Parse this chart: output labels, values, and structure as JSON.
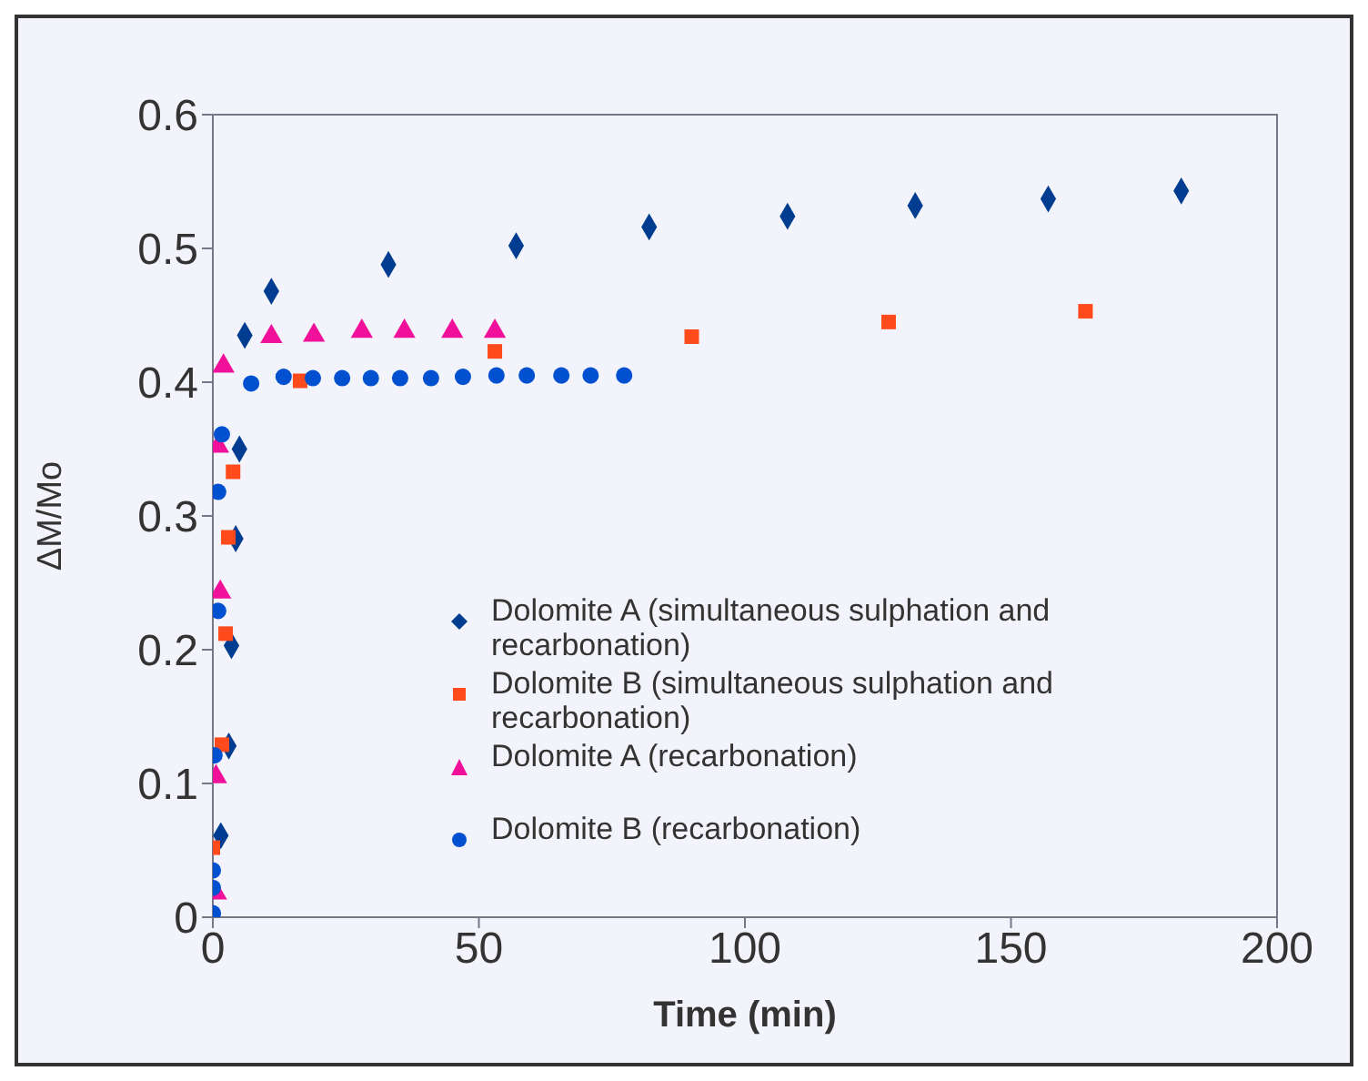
{
  "chart_data": {
    "type": "scatter",
    "xlabel": "Time (min)",
    "ylabel": "ΔM/Mo",
    "xlim": [
      0,
      200
    ],
    "xticks": [
      0,
      50,
      100,
      150,
      200
    ],
    "ylim": [
      0,
      0.6
    ],
    "yticks": [
      0,
      0.1,
      0.2,
      0.3,
      0.4,
      0.5,
      0.6
    ],
    "grid": false,
    "legend": "bottom",
    "series": [
      {
        "name": "Dolomite A (simultaneous sulphation and recarbonation)",
        "color": "#003c8f",
        "marker": "diamond",
        "x": [
          1.5,
          3,
          3.5,
          4.3,
          5,
          6,
          11,
          33,
          57,
          82,
          108,
          132,
          157,
          182
        ],
        "values": [
          0.061,
          0.128,
          0.203,
          0.283,
          0.35,
          0.435,
          0.468,
          0.488,
          0.502,
          0.516,
          0.524,
          0.532,
          0.537,
          0.543
        ]
      },
      {
        "name": "Dolomite B (simultaneous sulphation and recarbonation)",
        "color": "#ff4a1c",
        "marker": "square",
        "x": [
          0,
          1.7,
          2.4,
          2.9,
          3.8,
          16.4,
          53,
          90,
          127,
          164
        ],
        "values": [
          0.052,
          0.129,
          0.212,
          0.284,
          0.333,
          0.401,
          0.423,
          0.434,
          0.445,
          0.453
        ]
      },
      {
        "name": "Dolomite A (recarbonation)",
        "color": "#f0109a",
        "marker": "triangle",
        "x": [
          0.6,
          0.6,
          1.4,
          1,
          2,
          11,
          19,
          28,
          36,
          45,
          53
        ],
        "values": [
          0.018,
          0.105,
          0.243,
          0.352,
          0.412,
          0.434,
          0.435,
          0.438,
          0.438,
          0.438,
          0.438
        ]
      },
      {
        "name": "Dolomite B (recarbonation)",
        "color": "#0050d0",
        "marker": "circle",
        "x": [
          0,
          0,
          0,
          0.3,
          1,
          1,
          1.7,
          7.2,
          13.3,
          18.8,
          24.3,
          29.7,
          35.2,
          41,
          47,
          53.3,
          59,
          65.5,
          71,
          77.3
        ],
        "values": [
          0.003,
          0.022,
          0.035,
          0.121,
          0.229,
          0.318,
          0.361,
          0.399,
          0.404,
          0.403,
          0.403,
          0.403,
          0.403,
          0.403,
          0.404,
          0.405,
          0.405,
          0.405,
          0.405,
          0.405
        ]
      }
    ]
  }
}
